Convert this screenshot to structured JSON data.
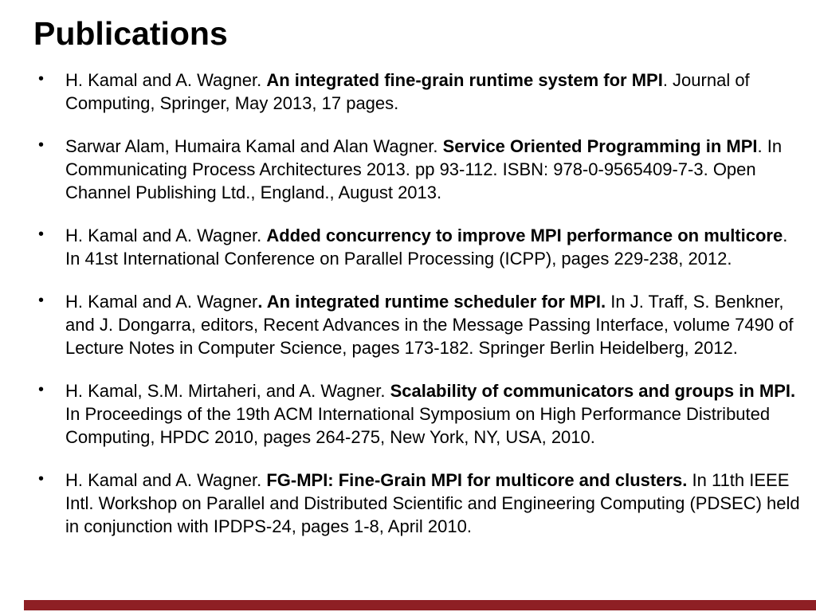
{
  "slide": {
    "title": "Publications",
    "accent_bar_color": "#8E1F24",
    "text_color": "#000000",
    "background_color": "#FFFFFF"
  },
  "list": {
    "bullet_glyph": "•"
  },
  "publications": [
    {
      "segments": [
        {
          "text": "H. Kamal and A. Wagner. ",
          "bold": false
        },
        {
          "text": "An integrated fine-grain runtime system for MPI",
          "bold": true
        },
        {
          "text": ". Journal of Computing, Springer, May 2013, 17 pages.",
          "bold": false
        }
      ]
    },
    {
      "segments": [
        {
          "text": "Sarwar Alam, Humaira Kamal and Alan Wagner. ",
          "bold": false
        },
        {
          "text": "Service Oriented Programming in MPI",
          "bold": true
        },
        {
          "text": ". In Communicating Process Architectures 2013. pp 93-112. ISBN: 978-0-9565409-7-3. Open Channel Publishing Ltd., England., August 2013.",
          "bold": false
        }
      ]
    },
    {
      "segments": [
        {
          "text": "H. Kamal and A. Wagner. ",
          "bold": false
        },
        {
          "text": "Added concurrency to improve MPI performance on multicore",
          "bold": true
        },
        {
          "text": ". In 41st International Conference on Parallel Processing (ICPP), pages 229-238, 2012.",
          "bold": false
        }
      ]
    },
    {
      "segments": [
        {
          "text": "H. Kamal and A. Wagner",
          "bold": false
        },
        {
          "text": ". An integrated runtime scheduler for MPI.",
          "bold": true
        },
        {
          "text": " In J. Traff, S. Benkner, and J. Dongarra, editors, Recent Advances in the Message Passing Interface, volume 7490 of Lecture Notes in Computer Science, pages 173-182. Springer Berlin Heidelberg, 2012.",
          "bold": false
        }
      ]
    },
    {
      "segments": [
        {
          "text": "H. Kamal, S.M. Mirtaheri, and A. Wagner. ",
          "bold": false
        },
        {
          "text": "Scalability of communicators and groups in MPI.",
          "bold": true
        },
        {
          "text": " In Proceedings of the 19th ACM International Symposium on High Performance Distributed Computing, HPDC 2010, pages 264-275, New York, NY, USA, 2010.",
          "bold": false
        }
      ]
    },
    {
      "segments": [
        {
          "text": "H. Kamal and A. Wagner. ",
          "bold": false
        },
        {
          "text": "FG-MPI: Fine-Grain MPI for multicore and clusters.",
          "bold": true
        },
        {
          "text": " In 11th IEEE Intl. Workshop on Parallel and Distributed Scientific and Engineering Computing (PDSEC) held in conjunction with IPDPS-24, pages 1-8, April 2010.",
          "bold": false
        }
      ]
    }
  ]
}
